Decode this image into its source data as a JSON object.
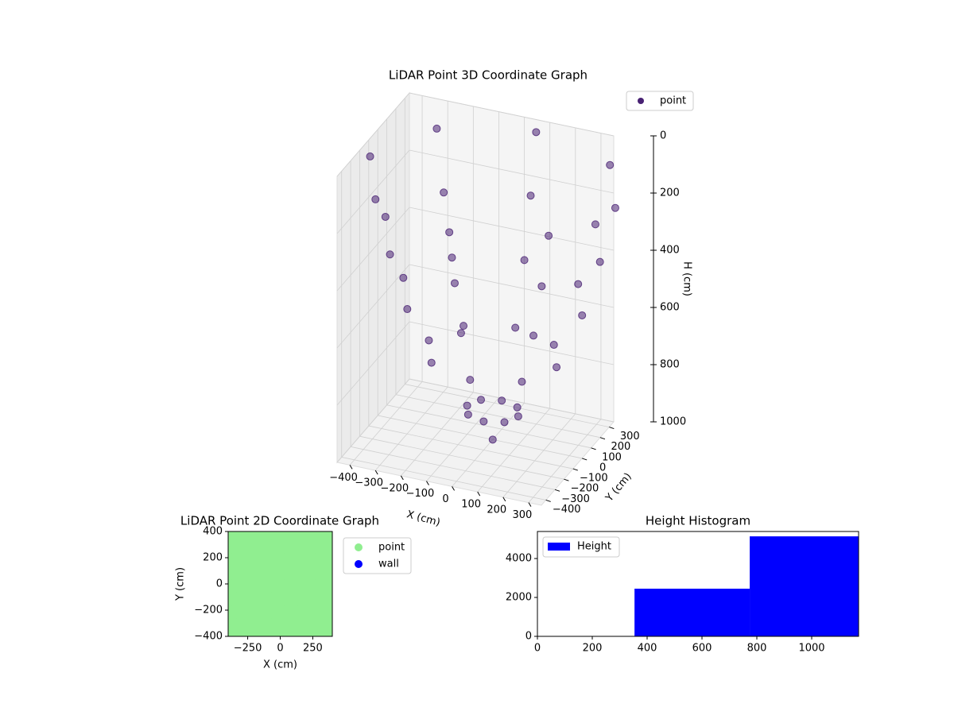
{
  "chart_data": [
    {
      "type": "scatter3d",
      "title": "LiDAR Point 3D Coordinate Graph",
      "xlabel": "X (cm)",
      "ylabel": "Y (cm)",
      "zlabel": "H (cm)",
      "xlim": [
        -450,
        350
      ],
      "ylim": [
        -450,
        350
      ],
      "zlim": [
        0,
        1000
      ],
      "z_inverted": true,
      "xticks": [
        {
          "value": -400,
          "label": "−400"
        },
        {
          "value": -300,
          "label": "−300"
        },
        {
          "value": -200,
          "label": "−200"
        },
        {
          "value": -100,
          "label": "−100"
        },
        0,
        100,
        200,
        300
      ],
      "yticks": [
        {
          "value": -400,
          "label": "−400"
        },
        {
          "value": -300,
          "label": "−300"
        },
        {
          "value": -200,
          "label": "−200"
        },
        {
          "value": -100,
          "label": "−100"
        },
        0,
        100,
        200,
        300
      ],
      "zticks": [
        0,
        200,
        400,
        600,
        800,
        1000
      ],
      "grid": true,
      "legend": "upper right",
      "series": [
        {
          "name": "point",
          "color": "#482173",
          "x": [
            0,
            100,
            71,
            0,
            -71,
            -100,
            -71,
            0,
            71,
            250,
            177,
            0,
            -177,
            -250,
            -177,
            0,
            177,
            350,
            247,
            0,
            -247,
            -350,
            -247,
            0,
            247,
            420,
            297,
            0,
            -297,
            -420,
            -297,
            0,
            297,
            480,
            339,
            0,
            -339,
            -480,
            -339,
            0,
            339
          ],
          "y": [
            0,
            0,
            71,
            100,
            71,
            0,
            -71,
            -100,
            -71,
            0,
            177,
            250,
            177,
            0,
            -177,
            -250,
            -177,
            0,
            247,
            350,
            247,
            0,
            -247,
            -350,
            -247,
            0,
            297,
            420,
            297,
            0,
            -297,
            -420,
            -297,
            0,
            339,
            480,
            339,
            0,
            -339,
            -480,
            -339
          ],
          "z": [
            1000,
            900,
            900,
            900,
            900,
            900,
            900,
            900,
            900,
            700,
            700,
            700,
            700,
            700,
            700,
            700,
            700,
            500,
            500,
            500,
            500,
            500,
            500,
            500,
            500,
            300,
            300,
            300,
            300,
            300,
            300,
            300,
            300,
            100,
            100,
            100,
            100,
            100,
            100,
            100,
            100
          ]
        }
      ]
    },
    {
      "type": "scatter",
      "title": "LiDAR Point 2D Coordinate Graph",
      "xlabel": "X (cm)",
      "ylabel": "Y (cm)",
      "xlim": [
        -400,
        400
      ],
      "ylim": [
        -400,
        400
      ],
      "xticks": [
        {
          "value": -250,
          "label": "−250"
        },
        0,
        250
      ],
      "yticks": [
        {
          "value": -400,
          "label": "−400"
        },
        {
          "value": -200,
          "label": "−200"
        },
        0,
        200,
        400
      ],
      "legend": "outside upper right",
      "series": [
        {
          "name": "point",
          "color": "#90ee90",
          "x": [
            -400,
            -300,
            -200,
            -100,
            0,
            100,
            200,
            300,
            400,
            -400,
            -300,
            -200,
            -100,
            0,
            100,
            200,
            300,
            400,
            -400,
            -300,
            -200,
            -100,
            0,
            100,
            200,
            300,
            400,
            -400,
            -300,
            -200,
            -100,
            0,
            100,
            200,
            300,
            400,
            -400,
            -300,
            -200,
            -100,
            0,
            100,
            200,
            300,
            400,
            -400,
            -300,
            -200,
            -100,
            0,
            100,
            200,
            300,
            400,
            -400,
            -300,
            -200,
            -100,
            0,
            100,
            200,
            300,
            400,
            -400,
            -300,
            -200,
            -100,
            0,
            100,
            200,
            300,
            400,
            -400,
            -300,
            -200,
            -100,
            0,
            100,
            200,
            300,
            400
          ],
          "y": [
            -400,
            -400,
            -400,
            -400,
            -400,
            -400,
            -400,
            -400,
            -400,
            -300,
            -300,
            -300,
            -300,
            -300,
            -300,
            -300,
            -300,
            -300,
            -200,
            -200,
            -200,
            -200,
            -200,
            -200,
            -200,
            -200,
            -200,
            -100,
            -100,
            -100,
            -100,
            -100,
            -100,
            -100,
            -100,
            -100,
            0,
            0,
            0,
            0,
            0,
            0,
            0,
            0,
            0,
            100,
            100,
            100,
            100,
            100,
            100,
            100,
            100,
            100,
            200,
            200,
            200,
            200,
            200,
            200,
            200,
            200,
            200,
            300,
            300,
            300,
            300,
            300,
            300,
            300,
            300,
            300,
            400,
            400,
            400,
            400,
            400,
            400,
            400,
            400,
            400
          ]
        },
        {
          "name": "wall",
          "color": "#0000ff",
          "x": [],
          "y": []
        }
      ]
    },
    {
      "type": "histogram",
      "title": "Height Histogram",
      "name": "Height",
      "color": "#0000ff",
      "bins": [
        0,
        354,
        774,
        1171
      ],
      "values": [
        0,
        2450,
        5140
      ],
      "xlim": [
        0,
        1171
      ],
      "ylim": [
        0,
        5390
      ],
      "xticks": [
        0,
        200,
        400,
        600,
        800,
        1000
      ],
      "yticks": [
        0,
        2000,
        4000
      ],
      "legend": "upper left"
    }
  ]
}
